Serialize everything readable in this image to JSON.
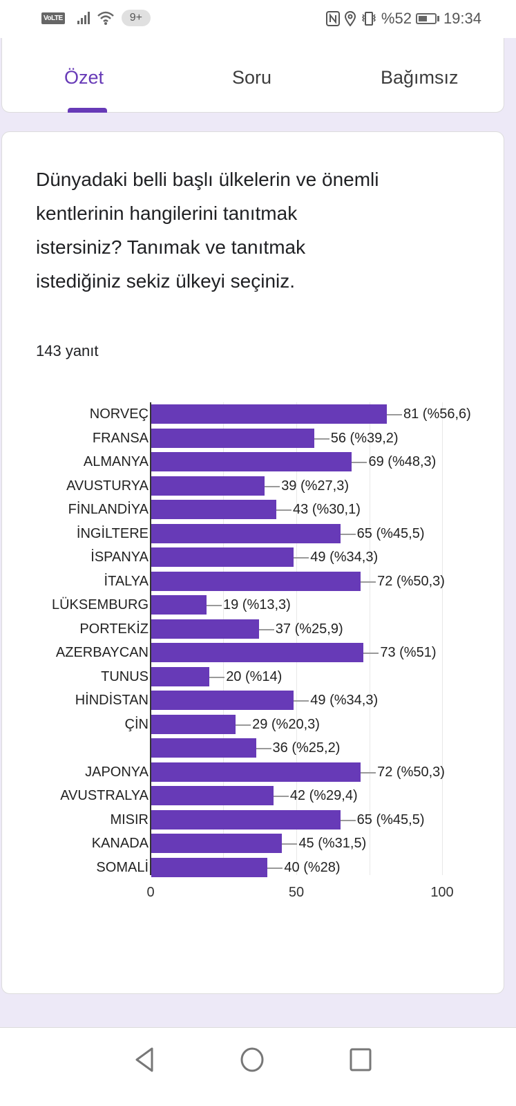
{
  "status_bar": {
    "volte": "VoLTE",
    "notifications": "9+",
    "battery": "%52",
    "time": "19:34"
  },
  "tabs": [
    {
      "label": "Özet",
      "active": true
    },
    {
      "label": "Soru",
      "active": false
    },
    {
      "label": "Bağımsız",
      "active": false
    }
  ],
  "question": {
    "title": "Dünyadaki belli başlı ülkelerin ve önemli kentlerinin hangilerini tanıtmak istersiniz? Tanımak ve tanıtmak istediğiniz sekiz ülkeyi seçiniz.",
    "response_count": "143 yanıt"
  },
  "chart_data": {
    "type": "bar",
    "orientation": "horizontal",
    "title": "Dünyadaki belli başlı ülkelerin ve önemli kentlerinin hangilerini tanıtmak istersiniz? Tanımak ve tanıtmak istediğiniz sekiz ülkeyi seçiniz.",
    "xlabel": "",
    "ylabel": "",
    "xlim": [
      0,
      100
    ],
    "x_ticks": [
      "0",
      "50",
      "100"
    ],
    "grid": true,
    "bar_color": "#673ab7",
    "categories": [
      "NORVEÇ",
      "FRANSA",
      "ALMANYA",
      "AVUSTURYA",
      "FİNLANDİYA",
      "İNGİLTERE",
      "İSPANYA",
      "İTALYA",
      "LÜKSEMBURG",
      "PORTEKİZ",
      "AZERBAYCAN",
      "TUNUS",
      "HİNDİSTAN",
      "ÇİN",
      "",
      "JAPONYA",
      "AVUSTRALYA",
      "MISIR",
      "KANADA",
      "SOMALİ"
    ],
    "values": [
      81,
      56,
      69,
      39,
      43,
      65,
      49,
      72,
      19,
      37,
      73,
      20,
      49,
      29,
      36,
      72,
      42,
      65,
      45,
      40
    ],
    "labels": [
      "81 (%56,6)",
      "56 (%39,2)",
      "69 (%48,3)",
      "39 (%27,3)",
      "43 (%30,1)",
      "65 (%45,5)",
      "49 (%34,3)",
      "72 (%50,3)",
      "19 (%13,3)",
      "37 (%25,9)",
      "73 (%51)",
      "20 (%14)",
      "49 (%34,3)",
      "29 (%20,3)",
      "36 (%25,2)",
      "72 (%50,3)",
      "42 (%29,4)",
      "65 (%45,5)",
      "45 (%31,5)",
      "40 (%28)"
    ]
  }
}
